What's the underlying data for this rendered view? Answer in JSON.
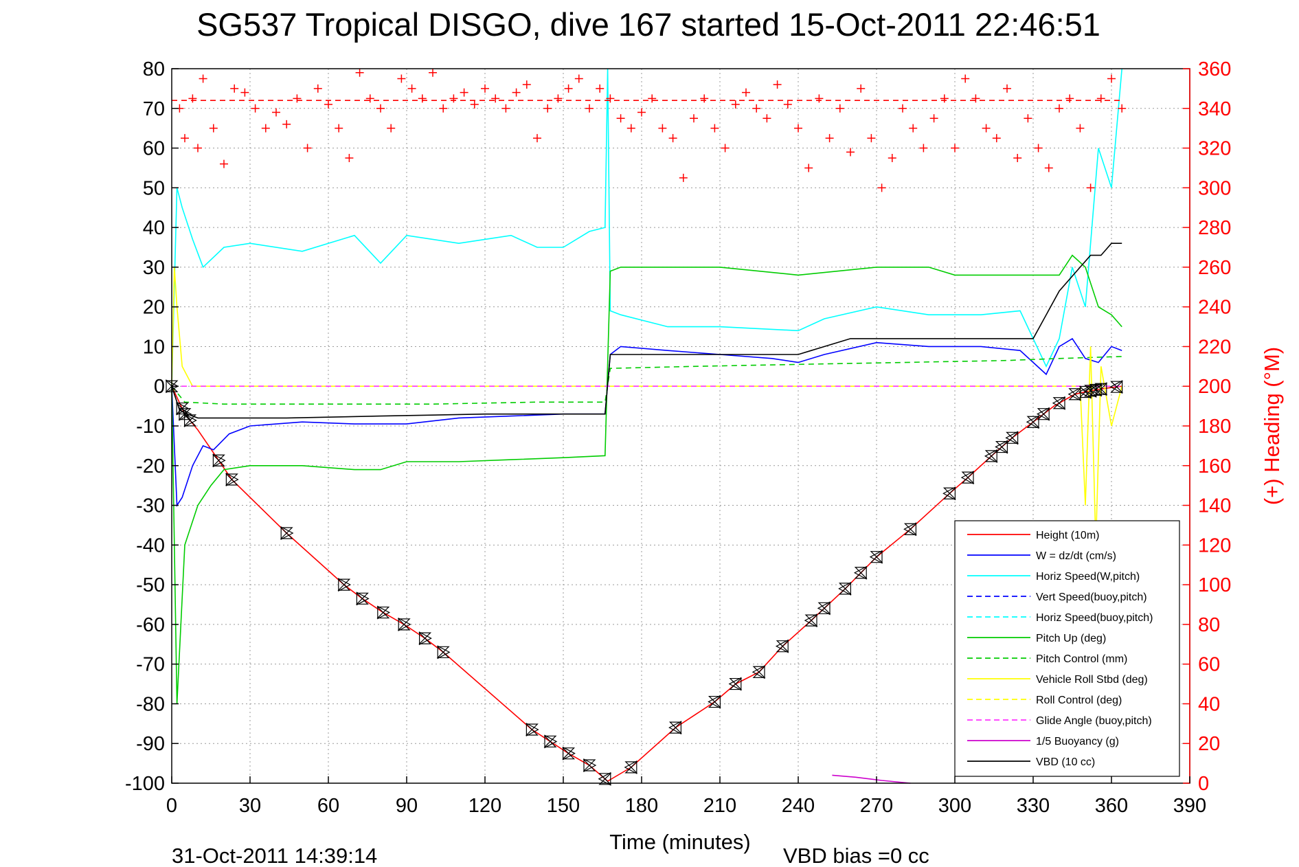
{
  "chart_data": {
    "type": "line",
    "title": "SG537 Tropical DISGO, dive 167 started 15-Oct-2011 22:46:51",
    "xlabel": "Time (minutes)",
    "ylabel_right": "(+) Heading (°M)",
    "footer_left": "31-Oct-2011 14:39:14",
    "footer_right": "VBD bias =0 cc",
    "xlim": [
      0,
      390
    ],
    "ylim": [
      -100,
      80
    ],
    "y2lim": [
      0,
      360
    ],
    "xticks": [
      0,
      30,
      60,
      90,
      120,
      150,
      180,
      210,
      240,
      270,
      300,
      330,
      360,
      390
    ],
    "yticks": [
      80,
      70,
      60,
      50,
      40,
      30,
      20,
      10,
      0,
      -10,
      -20,
      -30,
      -40,
      -50,
      -60,
      -70,
      -80,
      -90,
      -100
    ],
    "y2ticks": [
      360,
      340,
      320,
      300,
      280,
      260,
      240,
      220,
      200,
      180,
      160,
      140,
      120,
      100,
      80,
      60,
      40,
      20,
      0
    ],
    "grid": true,
    "legend_position": "bottom-right",
    "legend": [
      {
        "label": "Height (10m)",
        "color": "#ff0000",
        "dash": "solid"
      },
      {
        "label": "W = dz/dt (cm/s)",
        "color": "#0000ff",
        "dash": "solid"
      },
      {
        "label": "Horiz Speed(W,pitch)",
        "color": "#00ffff",
        "dash": "solid"
      },
      {
        "label": "Vert Speed(buoy,pitch)",
        "color": "#0000ff",
        "dash": "dashed"
      },
      {
        "label": "Horiz Speed(buoy,pitch)",
        "color": "#00ffff",
        "dash": "dashed"
      },
      {
        "label": "Pitch Up (deg)",
        "color": "#00cc00",
        "dash": "solid"
      },
      {
        "label": "Pitch Control (mm)",
        "color": "#00cc00",
        "dash": "dashed"
      },
      {
        "label": "Vehicle Roll Stbd (deg)",
        "color": "#ffff00",
        "dash": "solid"
      },
      {
        "label": "Roll Control (deg)",
        "color": "#ffff00",
        "dash": "dashed"
      },
      {
        "label": "Glide Angle (buoy,pitch)",
        "color": "#ff33ff",
        "dash": "dashed"
      },
      {
        "label": "1/5 Buoyancy (g)",
        "color": "#cc00cc",
        "dash": "solid"
      },
      {
        "label": "VBD (10 cc)",
        "color": "#000000",
        "dash": "solid"
      }
    ],
    "series": [
      {
        "name": "Height (10m)",
        "axis": "left",
        "color": "#ff0000",
        "x": [
          0,
          5,
          10,
          23,
          44,
          66,
          73,
          81,
          89,
          97,
          104,
          138,
          145,
          152,
          160,
          167,
          176,
          193,
          208,
          216,
          225,
          234,
          245,
          258,
          270,
          283,
          298,
          305,
          315,
          322,
          330,
          338,
          346,
          353,
          358,
          364
        ],
        "y": [
          0,
          -7,
          -11,
          -23.5,
          -37,
          -50,
          -53.5,
          -57,
          -60,
          -63.5,
          -67,
          -86.5,
          -89.5,
          -92.5,
          -95.5,
          -99.5,
          -96,
          -86,
          -79.5,
          -75,
          -72,
          -65.5,
          -59,
          -51,
          -43,
          -36,
          -27,
          -23,
          -17,
          -13,
          -9,
          -5,
          -2,
          -1,
          -0.5,
          0
        ]
      },
      {
        "name": "W = dz/dt (cm/s)",
        "axis": "left",
        "color": "#0000ff",
        "x": [
          0,
          2,
          4,
          8,
          12,
          16,
          22,
          30,
          50,
          70,
          90,
          110,
          130,
          150,
          166,
          168,
          172,
          190,
          210,
          230,
          240,
          250,
          270,
          290,
          310,
          325,
          335,
          340,
          345,
          350,
          355,
          360,
          364
        ],
        "y": [
          0,
          -30,
          -28,
          -20,
          -15,
          -16,
          -12,
          -10,
          -9,
          -9.5,
          -9.5,
          -8,
          -7.5,
          -7,
          -7,
          8,
          10,
          9,
          8,
          7,
          6,
          8,
          11,
          10,
          10,
          9,
          3,
          10,
          12,
          7,
          6,
          10,
          9
        ]
      },
      {
        "name": "Horiz Speed(W,pitch)",
        "axis": "left",
        "color": "#00ffff",
        "x": [
          0,
          2,
          4,
          8,
          12,
          20,
          30,
          50,
          70,
          80,
          90,
          100,
          110,
          120,
          130,
          140,
          150,
          160,
          166,
          167,
          168,
          172,
          190,
          210,
          240,
          250,
          270,
          290,
          310,
          325,
          335,
          340,
          345,
          350,
          355,
          360,
          364
        ],
        "y": [
          0,
          50,
          45,
          37,
          30,
          35,
          36,
          34,
          38,
          31,
          38,
          37,
          36,
          37,
          38,
          35,
          35,
          39,
          40,
          80,
          19,
          18,
          15,
          15,
          14,
          17,
          20,
          18,
          18,
          19,
          5,
          12,
          30,
          20,
          60,
          50,
          80
        ]
      },
      {
        "name": "Pitch Up (deg)",
        "axis": "left",
        "color": "#00cc00",
        "x": [
          0,
          2,
          5,
          10,
          15,
          20,
          30,
          50,
          70,
          80,
          90,
          110,
          130,
          150,
          166,
          168,
          172,
          190,
          210,
          240,
          270,
          290,
          300,
          320,
          330,
          335,
          340,
          345,
          350,
          355,
          360,
          364
        ],
        "y": [
          0,
          -80,
          -40,
          -30,
          -25,
          -21,
          -20,
          -20,
          -21,
          -21,
          -19,
          -19,
          -18.5,
          -18,
          -17.5,
          29,
          30,
          30,
          30,
          28,
          30,
          30,
          28,
          28,
          28,
          28,
          28,
          33,
          30,
          20,
          18,
          15
        ]
      },
      {
        "name": "Pitch Control (mm)",
        "axis": "left",
        "color": "#00cc00",
        "dash": "dashed",
        "x": [
          0,
          5,
          20,
          60,
          100,
          140,
          166,
          168,
          200,
          240,
          280,
          320,
          340,
          364
        ],
        "y": [
          0,
          -4,
          -4.5,
          -4.5,
          -4.5,
          -4,
          -4,
          4.5,
          5,
          5.5,
          6,
          6.5,
          7,
          7.5
        ]
      },
      {
        "name": "Vehicle Roll Stbd (deg)",
        "axis": "left",
        "color": "#ffff00",
        "x": [
          0,
          1,
          2,
          4,
          8,
          20,
          60,
          100,
          150,
          166,
          168,
          200,
          250,
          300,
          330,
          340,
          348,
          350,
          352,
          354,
          356,
          360,
          364
        ],
        "y": [
          0,
          30,
          20,
          5,
          0,
          0,
          0,
          0,
          0,
          0,
          0,
          0,
          0,
          0,
          0,
          0,
          0,
          -30,
          10,
          -40,
          5,
          -10,
          0
        ]
      },
      {
        "name": "Glide Angle (buoy,pitch)",
        "axis": "left",
        "color": "#ff33ff",
        "dash": "dashed",
        "x": [
          0,
          364
        ],
        "y": [
          0,
          0
        ]
      },
      {
        "name": "1/5 Buoyancy (g)",
        "axis": "left",
        "color": "#cc00cc",
        "x": [
          253,
          262,
          272,
          283
        ],
        "y": [
          -98,
          -98.5,
          -99.3,
          -100
        ]
      },
      {
        "name": "VBD (10 cc)",
        "axis": "left",
        "color": "#000000",
        "x": [
          0,
          3,
          6,
          8,
          10,
          44,
          80,
          120,
          150,
          166,
          168,
          240,
          245,
          260,
          300,
          330,
          340,
          348,
          352,
          356,
          360,
          364
        ],
        "y": [
          0,
          -6,
          -7,
          -7.5,
          -8,
          -8,
          -7.5,
          -7,
          -7,
          -7,
          8,
          8,
          9,
          12,
          12,
          12,
          24,
          30,
          33,
          33,
          36,
          36
        ]
      },
      {
        "name": "(+) Heading (°M)",
        "axis": "right",
        "color": "#ff0000",
        "marker": "+",
        "x": [
          3,
          5,
          8,
          10,
          12,
          16,
          20,
          24,
          28,
          32,
          36,
          40,
          44,
          48,
          52,
          56,
          60,
          64,
          68,
          72,
          76,
          80,
          84,
          88,
          92,
          96,
          100,
          104,
          108,
          112,
          116,
          120,
          124,
          128,
          132,
          136,
          140,
          144,
          148,
          152,
          156,
          160,
          164,
          168,
          172,
          176,
          180,
          184,
          188,
          192,
          196,
          200,
          204,
          208,
          212,
          216,
          220,
          224,
          228,
          232,
          236,
          240,
          244,
          248,
          252,
          256,
          260,
          264,
          268,
          272,
          276,
          280,
          284,
          288,
          292,
          296,
          300,
          304,
          308,
          312,
          316,
          320,
          324,
          328,
          332,
          336,
          340,
          344,
          348,
          352,
          356,
          360,
          364
        ],
        "y": [
          340,
          325,
          345,
          320,
          355,
          330,
          312,
          350,
          348,
          340,
          330,
          338,
          332,
          345,
          320,
          350,
          342,
          330,
          315,
          358,
          345,
          340,
          330,
          355,
          350,
          345,
          358,
          340,
          345,
          348,
          342,
          350,
          345,
          340,
          348,
          352,
          325,
          340,
          345,
          350,
          355,
          340,
          350,
          345,
          335,
          330,
          338,
          345,
          330,
          325,
          305,
          335,
          345,
          330,
          320,
          342,
          348,
          340,
          335,
          352,
          342,
          330,
          310,
          345,
          325,
          340,
          318,
          350,
          325,
          300,
          315,
          340,
          330,
          320,
          335,
          345,
          320,
          355,
          345,
          330,
          325,
          350,
          315,
          335,
          320,
          310,
          340,
          345,
          330,
          300,
          345,
          355,
          340
        ]
      },
      {
        "name": "Heading mean",
        "axis": "right",
        "color": "#ff0000",
        "dash": "dashed",
        "x": [
          0,
          364
        ],
        "y": [
          344,
          344
        ]
      }
    ],
    "depth_markers_x": [
      0,
      4,
      5,
      7,
      18,
      23,
      44,
      66,
      73,
      81,
      89,
      97,
      104,
      138,
      145,
      152,
      160,
      166,
      176,
      193,
      208,
      216,
      225,
      234,
      245,
      250,
      258,
      264,
      270,
      283,
      298,
      305,
      314,
      318,
      322,
      330,
      334,
      340,
      346,
      350,
      352,
      354,
      356,
      362
    ]
  }
}
